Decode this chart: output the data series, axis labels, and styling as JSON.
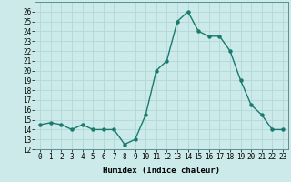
{
  "x": [
    0,
    1,
    2,
    3,
    4,
    5,
    6,
    7,
    8,
    9,
    10,
    11,
    12,
    13,
    14,
    15,
    16,
    17,
    18,
    19,
    20,
    21,
    22,
    23
  ],
  "y": [
    14.5,
    14.7,
    14.5,
    14.0,
    14.5,
    14.0,
    14.0,
    14.0,
    12.5,
    13.0,
    15.5,
    20.0,
    21.0,
    25.0,
    26.0,
    24.0,
    23.5,
    23.5,
    22.0,
    19.0,
    16.5,
    15.5,
    14.0,
    14.0
  ],
  "line_color": "#1a7a6e",
  "marker": "o",
  "marker_size": 2.2,
  "linewidth": 1.0,
  "bg_color": "#cceaea",
  "grid_color": "#b0d8d8",
  "xlabel": "Humidex (Indice chaleur)",
  "ylim": [
    12,
    27
  ],
  "xlim": [
    -0.5,
    23.5
  ],
  "yticks": [
    12,
    13,
    14,
    15,
    16,
    17,
    18,
    19,
    20,
    21,
    22,
    23,
    24,
    25,
    26
  ],
  "xticks": [
    0,
    1,
    2,
    3,
    4,
    5,
    6,
    7,
    8,
    9,
    10,
    11,
    12,
    13,
    14,
    15,
    16,
    17,
    18,
    19,
    20,
    21,
    22,
    23
  ],
  "label_fontsize": 6.5,
  "tick_fontsize": 5.5,
  "spine_color": "#5a9090"
}
